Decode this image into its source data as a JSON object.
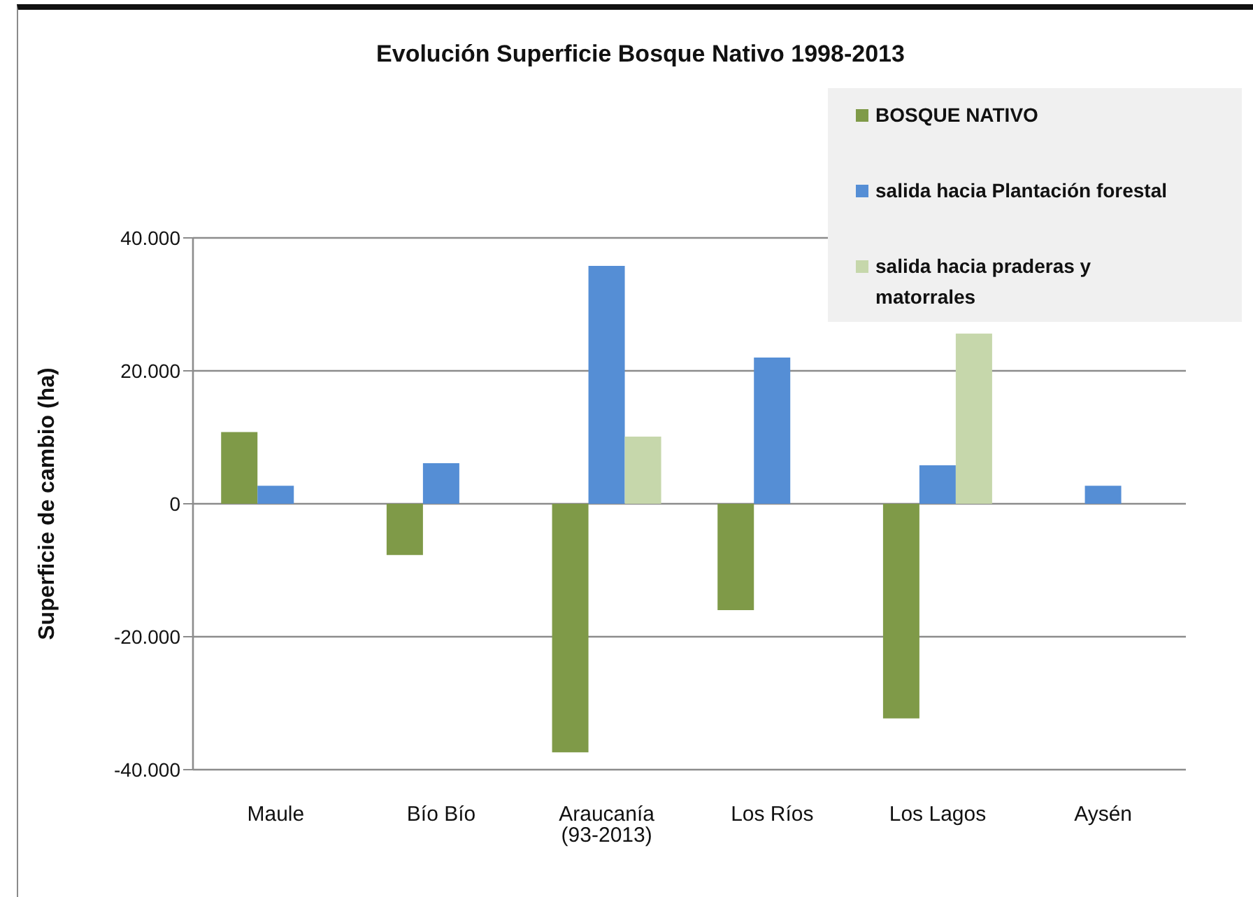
{
  "chart_data": {
    "type": "bar",
    "title": "Evolución Superficie Bosque Nativo 1998-2013",
    "ylabel": "Superficie de cambio (ha)",
    "categories": [
      "Maule",
      "Bío Bío",
      "Araucanía (93-2013)",
      "Los Ríos",
      "Los Lagos",
      "Aysén"
    ],
    "series": [
      {
        "name": "BOSQUE NATIVO",
        "color": "#7f9a48",
        "values": [
          10800,
          -7700,
          -37400,
          -16000,
          -32300,
          null
        ]
      },
      {
        "name": "salida hacia Plantación forestal",
        "color": "#558ed5",
        "values": [
          2700,
          6100,
          35800,
          22000,
          5800,
          2700
        ]
      },
      {
        "name": "salida hacia praderas y matorrales",
        "color": "#c6d7ab",
        "values": [
          null,
          null,
          10100,
          null,
          25600,
          null
        ]
      }
    ],
    "ylim": [
      -40000,
      40000
    ],
    "yticks": [
      {
        "value": -40000,
        "label": "-40.000"
      },
      {
        "value": -20000,
        "label": "-20.000"
      },
      0,
      {
        "value": 20000,
        "label": "20.000"
      },
      {
        "value": 40000,
        "label": "40.000"
      }
    ],
    "grid": "y",
    "legend": "top right"
  }
}
